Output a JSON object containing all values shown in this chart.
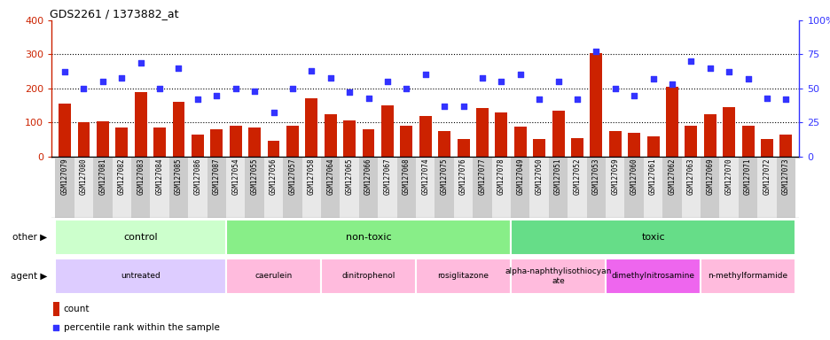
{
  "title": "GDS2261 / 1373882_at",
  "samples": [
    "GSM127079",
    "GSM127080",
    "GSM127081",
    "GSM127082",
    "GSM127083",
    "GSM127084",
    "GSM127085",
    "GSM127086",
    "GSM127087",
    "GSM127054",
    "GSM127055",
    "GSM127056",
    "GSM127057",
    "GSM127058",
    "GSM127064",
    "GSM127065",
    "GSM127066",
    "GSM127067",
    "GSM127068",
    "GSM127074",
    "GSM127075",
    "GSM127076",
    "GSM127077",
    "GSM127078",
    "GSM127049",
    "GSM127050",
    "GSM127051",
    "GSM127052",
    "GSM127053",
    "GSM127059",
    "GSM127060",
    "GSM127061",
    "GSM127062",
    "GSM127063",
    "GSM127069",
    "GSM127070",
    "GSM127071",
    "GSM127072",
    "GSM127073"
  ],
  "counts": [
    155,
    100,
    102,
    85,
    190,
    85,
    160,
    65,
    80,
    90,
    85,
    47,
    90,
    170,
    125,
    105,
    80,
    150,
    90,
    120,
    75,
    50,
    143,
    130,
    88,
    50,
    135,
    55,
    303,
    75,
    70,
    60,
    205,
    90,
    125,
    145,
    90,
    52,
    65
  ],
  "percentiles": [
    62,
    50,
    55,
    58,
    69,
    50,
    65,
    42,
    45,
    50,
    48,
    32,
    50,
    63,
    58,
    47,
    43,
    55,
    50,
    60,
    37,
    37,
    58,
    55,
    60,
    42,
    55,
    42,
    77,
    50,
    45,
    57,
    53,
    70,
    65,
    62,
    57,
    43,
    42
  ],
  "bar_color": "#cc2200",
  "dot_color": "#3333ff",
  "ylim_left": [
    0,
    400
  ],
  "ylim_right": [
    0,
    100
  ],
  "yticks_left": [
    0,
    100,
    200,
    300,
    400
  ],
  "yticks_right": [
    0,
    25,
    50,
    75,
    100
  ],
  "groups": [
    {
      "label": "control",
      "start": 0,
      "end": 9,
      "color": "#ccffcc"
    },
    {
      "label": "non-toxic",
      "start": 9,
      "end": 24,
      "color": "#88ee88"
    },
    {
      "label": "toxic",
      "start": 24,
      "end": 39,
      "color": "#66dd88"
    }
  ],
  "agents": [
    {
      "label": "untreated",
      "start": 0,
      "end": 9,
      "color": "#ddccff"
    },
    {
      "label": "caerulein",
      "start": 9,
      "end": 14,
      "color": "#ffbbdd"
    },
    {
      "label": "dinitrophenol",
      "start": 14,
      "end": 19,
      "color": "#ffbbdd"
    },
    {
      "label": "rosiglitazone",
      "start": 19,
      "end": 24,
      "color": "#ffbbdd"
    },
    {
      "label": "alpha-naphthylisothiocyan\nate",
      "start": 24,
      "end": 29,
      "color": "#ffbbdd"
    },
    {
      "label": "dimethylnitrosamine",
      "start": 29,
      "end": 34,
      "color": "#ee66ee"
    },
    {
      "label": "n-methylformamide",
      "start": 34,
      "end": 39,
      "color": "#ffbbdd"
    }
  ],
  "tick_bg_color": "#cccccc",
  "tick_bg_color_alt": "#e8e8e8",
  "legend_count_color": "#cc2200",
  "legend_pct_color": "#3333ff",
  "background_color": "#ffffff"
}
